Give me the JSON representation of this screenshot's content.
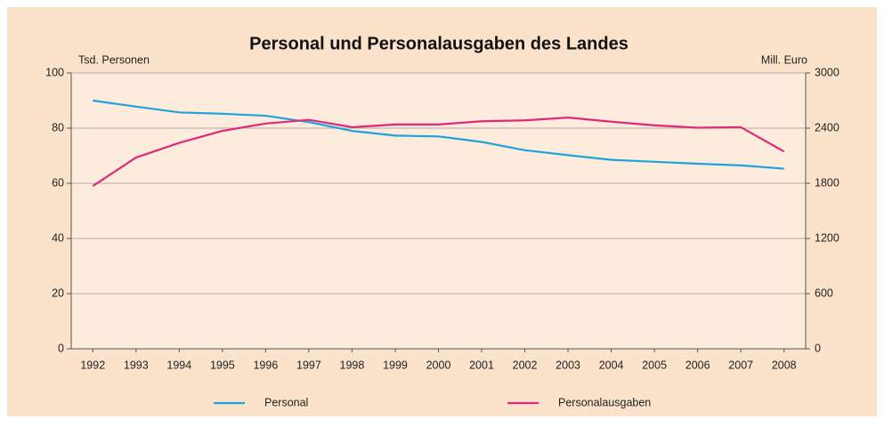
{
  "chart_data": {
    "type": "line",
    "title": "Personal und Personalausgaben des Landes",
    "ylabel": "Tsd. Personen",
    "y2label": "Mill. Euro",
    "categories": [
      "1992",
      "1993",
      "1994",
      "1995",
      "1996",
      "1997",
      "1998",
      "1999",
      "2000",
      "2001",
      "2002",
      "2003",
      "2004",
      "2005",
      "2006",
      "2007",
      "2008"
    ],
    "series": [
      {
        "name": "Personal",
        "color": "#1ea3dc",
        "values": [
          90,
          87.8,
          85.7,
          85.2,
          84.5,
          82.2,
          79,
          77.3,
          77,
          75,
          72,
          70.2,
          68.5,
          67.8,
          67.1,
          66.5,
          65.3
        ]
      },
      {
        "name": "Personalausgaben",
        "color": "#e0287a",
        "axis": "y2",
        "values": [
          1770,
          2080,
          2240,
          2370,
          2450,
          2490,
          2410,
          2440,
          2440,
          2475,
          2485,
          2515,
          2470,
          2430,
          2405,
          2410,
          2145
        ]
      }
    ],
    "ylim": [
      0,
      100
    ],
    "yticks": [
      0,
      20,
      40,
      60,
      80,
      100
    ],
    "y2lim": [
      0,
      3000
    ],
    "y2ticks": [
      0,
      600,
      1200,
      1800,
      2400,
      3000
    ],
    "grid": true,
    "legend": "bottom"
  }
}
